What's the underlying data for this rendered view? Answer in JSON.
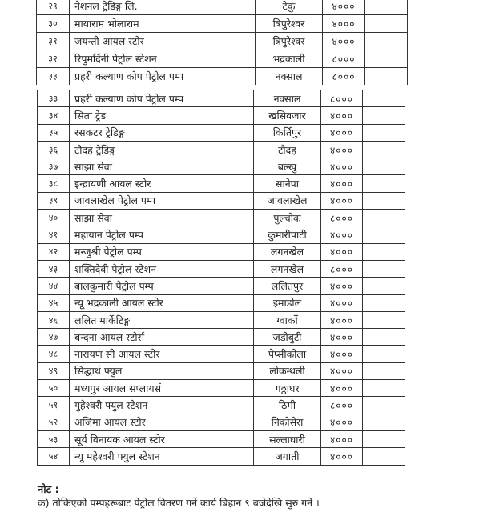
{
  "top_rows": [
    {
      "no": "२९",
      "name": "नेशनल ट्रेडिङ्ग लि.",
      "location": "टेकु",
      "amount": "४०००"
    },
    {
      "no": "३०",
      "name": "मायाराम भोलाराम",
      "location": "त्रिपुरेश्वर",
      "amount": "४०००"
    },
    {
      "no": "३१",
      "name": "जयन्ती आयल स्टोर",
      "location": "त्रिपुरेश्वर",
      "amount": "४०००"
    },
    {
      "no": "३२",
      "name": "रिपुमर्दिनी पेट्रोल स्टेशन",
      "location": "भद्रकाली",
      "amount": "८०००"
    },
    {
      "no": "३३",
      "name": "प्रहरी कल्याण कोप पेट्रोल पम्प",
      "location": "नक्साल",
      "amount": "८०००"
    }
  ],
  "bottom_rows": [
    {
      "no": "३३",
      "name": "प्रहरी कल्याण कोप पेट्रोल पम्प",
      "location": "नक्साल",
      "amount": "८०००"
    },
    {
      "no": "३४",
      "name": "सिता ट्रेड",
      "location": "खसिवजार",
      "amount": "४०००"
    },
    {
      "no": "३५",
      "name": "रसकटर ट्रेडिङ्ग",
      "location": "किर्तिपुर",
      "amount": "४०००"
    },
    {
      "no": "३६",
      "name": "टौदह ट्रेडिङ्ग",
      "location": "टौदह",
      "amount": "४०००"
    },
    {
      "no": "३७",
      "name": "साझा सेवा",
      "location": "बल्खु",
      "amount": "४०००"
    },
    {
      "no": "३८",
      "name": "इन्द्रायणी आयल स्टोर",
      "location": "सानेपा",
      "amount": "४०००"
    },
    {
      "no": "३९",
      "name": "जावलाखेल पेट्रोल पम्प",
      "location": "जावलाखेल",
      "amount": "४०००"
    },
    {
      "no": "४०",
      "name": "साझा सेवा",
      "location": "पुल्चोक",
      "amount": "८०००"
    },
    {
      "no": "४१",
      "name": "महायान पेट्रोल पम्प",
      "location": "कुमारीपाटी",
      "amount": "४०००"
    },
    {
      "no": "४२",
      "name": "मन्जुश्री पेट्रोल पम्प",
      "location": "लगनखेल",
      "amount": "४०००"
    },
    {
      "no": "४३",
      "name": "शक्तिदेवी पेट्रोल स्टेशन",
      "location": "लगनखेल",
      "amount": "८०००"
    },
    {
      "no": "४४",
      "name": "बालकुमारी पेट्रोल पम्प",
      "location": "ललितपुर",
      "amount": "४०००"
    },
    {
      "no": "४५",
      "name": "न्यू भद्रकाली आयल स्टोर",
      "location": "इमाडोल",
      "amount": "४०००"
    },
    {
      "no": "४६",
      "name": "ललित मार्केटिङ्ग",
      "location": "ग्वार्को",
      "amount": "४०००"
    },
    {
      "no": "४७",
      "name": "बन्दना आयल स्टोर्स",
      "location": "जडीबुटी",
      "amount": "४०००"
    },
    {
      "no": "४८",
      "name": "नारायण सी आयल स्टोर",
      "location": "पेप्सीकोला",
      "amount": "४०००"
    },
    {
      "no": "४९",
      "name": "सिद्धार्थ फ्युल",
      "location": "लोकन्थली",
      "amount": "४०००"
    },
    {
      "no": "५०",
      "name": "मध्यपुर आयल सप्लायर्स",
      "location": "गठ्ठाघर",
      "amount": "४०००"
    },
    {
      "no": "५१",
      "name": "गुहेश्वरी फ्युल स्टेशन",
      "location": "ठिमी",
      "amount": "८०००"
    },
    {
      "no": "५२",
      "name": "अजिमा आयल स्टोर",
      "location": "निकोसेरा",
      "amount": "४०००"
    },
    {
      "no": "५३",
      "name": "सूर्य विनायक आयल स्टोर",
      "location": "सल्लाघारी",
      "amount": "४०००"
    },
    {
      "no": "५४",
      "name": "न्यू महेश्वरी फ्युल स्टेशन",
      "location": "जगाती",
      "amount": "४०००"
    }
  ],
  "note": {
    "title": "नोट :",
    "text": "क) तोकिएको पम्पहरूबाट पेट्रोल वितरण गर्ने कार्य बिहान ९ बजेदेखि सुरु गर्ने ।"
  }
}
